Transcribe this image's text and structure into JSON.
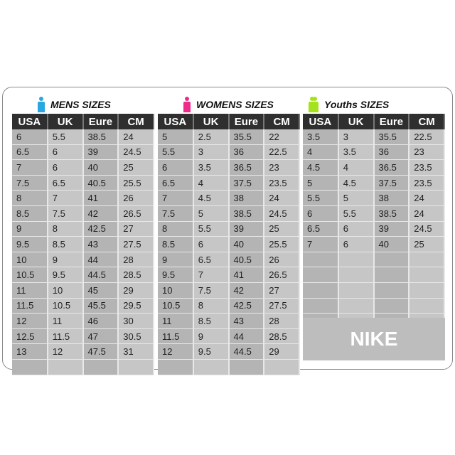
{
  "headers": [
    "USA",
    "UK",
    "Eure",
    "CM"
  ],
  "colors": {
    "mens_icon": "#2aa7e0",
    "womens_icon": "#ee2a8a",
    "youths_icon": "#a6e21c",
    "header_bg": "#2f2f2f"
  },
  "sections": [
    {
      "id": "mens",
      "title": "MENS  SIZES",
      "icon": "man-icon",
      "rows": [
        [
          "6",
          "5.5",
          "38.5",
          "24"
        ],
        [
          "6.5",
          "6",
          "39",
          "24.5"
        ],
        [
          "7",
          "6",
          "40",
          "25"
        ],
        [
          "7.5",
          "6.5",
          "40.5",
          "25.5"
        ],
        [
          "8",
          "7",
          "41",
          "26"
        ],
        [
          "8.5",
          "7.5",
          "42",
          "26.5"
        ],
        [
          "9",
          "8",
          "42.5",
          "27"
        ],
        [
          "9.5",
          "8.5",
          "43",
          "27.5"
        ],
        [
          "10",
          "9",
          "44",
          "28"
        ],
        [
          "10.5",
          "9.5",
          "44.5",
          "28.5"
        ],
        [
          "11",
          "10",
          "45",
          "29"
        ],
        [
          "11.5",
          "10.5",
          "45.5",
          "29.5"
        ],
        [
          "12",
          "11",
          "46",
          "30"
        ],
        [
          "12.5",
          "11.5",
          "47",
          "30.5"
        ],
        [
          "13",
          "12",
          "47.5",
          "31"
        ],
        [
          "",
          "",
          "",
          ""
        ]
      ]
    },
    {
      "id": "womens",
      "title": "WOMENS  SIZES",
      "icon": "woman-icon",
      "rows": [
        [
          "5",
          "2.5",
          "35.5",
          "22"
        ],
        [
          "5.5",
          "3",
          "36",
          "22.5"
        ],
        [
          "6",
          "3.5",
          "36.5",
          "23"
        ],
        [
          "6.5",
          "4",
          "37.5",
          "23.5"
        ],
        [
          "7",
          "4.5",
          "38",
          "24"
        ],
        [
          "7.5",
          "5",
          "38.5",
          "24.5"
        ],
        [
          "8",
          "5.5",
          "39",
          "25"
        ],
        [
          "8.5",
          "6",
          "40",
          "25.5"
        ],
        [
          "9",
          "6.5",
          "40.5",
          "26"
        ],
        [
          "9.5",
          "7",
          "41",
          "26.5"
        ],
        [
          "10",
          "7.5",
          "42",
          "27"
        ],
        [
          "10.5",
          "8",
          "42.5",
          "27.5"
        ],
        [
          "11",
          "8.5",
          "43",
          "28"
        ],
        [
          "11.5",
          "9",
          "44",
          "28.5"
        ],
        [
          "12",
          "9.5",
          "44.5",
          "29"
        ],
        [
          "",
          "",
          "",
          ""
        ]
      ]
    },
    {
      "id": "youths",
      "title": "Youths  SIZES",
      "icon": "youth-icon",
      "rows": [
        [
          "3.5",
          "3",
          "35.5",
          "22.5"
        ],
        [
          "4",
          "3.5",
          "36",
          "23"
        ],
        [
          "4.5",
          "4",
          "36.5",
          "23.5"
        ],
        [
          "5",
          "4.5",
          "37.5",
          "23.5"
        ],
        [
          "5.5",
          "5",
          "38",
          "24"
        ],
        [
          "6",
          "5.5",
          "38.5",
          "24"
        ],
        [
          "6.5",
          "6",
          "39",
          "24.5"
        ],
        [
          "7",
          "6",
          "40",
          "25"
        ],
        [
          "",
          "",
          "",
          ""
        ],
        [
          "",
          "",
          "",
          ""
        ],
        [
          "",
          "",
          "",
          ""
        ],
        [
          "",
          "",
          "",
          ""
        ],
        [
          "",
          "",
          "",
          ""
        ]
      ]
    }
  ],
  "brand": "NIKE"
}
